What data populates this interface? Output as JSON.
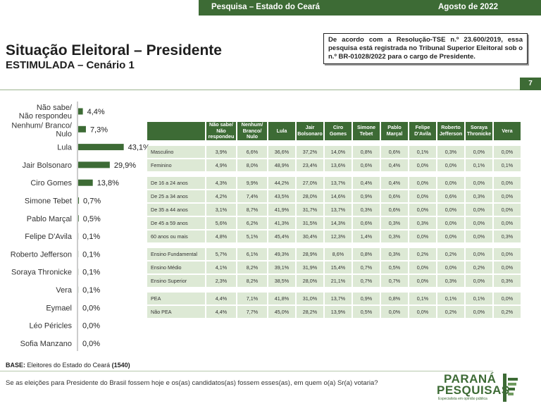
{
  "header": {
    "survey": "Pesquisa – Estado do Ceará",
    "date": "Agosto de 2022"
  },
  "title": "Situação Eleitoral – Presidente",
  "subtitle": "ESTIMULADA – Cenário 1",
  "notice": "De acordo com a Resolução-TSE n.º 23.600/2019, essa pesquisa está registrada no Tribunal Superior Eleitoral sob o n.º BR-01028/2022 para o cargo de Presidente.",
  "page_number": "7",
  "base": {
    "label": "BASE:",
    "text": " Eleitores do Estado do Ceará ",
    "count": "(1540)"
  },
  "question": "Se as eleições para Presidente do Brasil fossem hoje e os(as) candidatos(as) fossem esses(as), em quem o(a) Sr(a) votaria?",
  "logo": {
    "line1": "PARANÁ",
    "line2": "PESQUISAS",
    "tagline": "Especialista em opinião pública"
  },
  "colors": {
    "accent": "#3d6b35",
    "cell": "#dde9d5"
  },
  "chart_data": [
    {
      "type": "bar",
      "orientation": "horizontal",
      "categories": [
        [
          "Não sabe/",
          "Não respondeu"
        ],
        [
          "Nenhum/ Branco/",
          "Nulo"
        ],
        [
          "Lula"
        ],
        [
          "Jair Bolsonaro"
        ],
        [
          "Ciro Gomes"
        ],
        [
          "Simone Tebet"
        ],
        [
          "Pablo Marçal"
        ],
        [
          "Felipe D'Avila"
        ],
        [
          "Roberto Jefferson"
        ],
        [
          "Soraya Thronicke"
        ],
        [
          "Vera"
        ],
        [
          "Eymael"
        ],
        [
          "Léo Péricles"
        ],
        [
          "Sofia Manzano"
        ]
      ],
      "values": [
        4.4,
        7.3,
        43.1,
        29.9,
        13.8,
        0.7,
        0.5,
        0.1,
        0.1,
        0.1,
        0.1,
        0.0,
        0.0,
        0.0
      ],
      "value_labels": [
        "4,4%",
        "7,3%",
        "43,1%",
        "29,9%",
        "13,8%",
        "0,7%",
        "0,5%",
        "0,1%",
        "0,1%",
        "0,1%",
        "0,1%",
        "0,0%",
        "0,0%",
        "0,0%"
      ],
      "bar_color": "#3d6b35"
    },
    {
      "type": "table",
      "columns": [
        "",
        [
          "Não sabe/",
          "Não",
          "respondeu"
        ],
        [
          "Nenhum/",
          "Branco/",
          "Nulo"
        ],
        [
          "Lula"
        ],
        [
          "Jair",
          "Bolsonaro"
        ],
        [
          "Ciro",
          "Gomes"
        ],
        [
          "Simone",
          "Tebet"
        ],
        [
          "Pablo",
          "Marçal"
        ],
        [
          "Felipe",
          "D'Avila"
        ],
        [
          "Roberto",
          "Jefferson"
        ],
        [
          "Soraya",
          "Thronicke"
        ],
        [
          "Vera"
        ]
      ],
      "groups": [
        [
          [
            "Masculino",
            "3,9%",
            "6,6%",
            "36,6%",
            "37,2%",
            "14,0%",
            "0,8%",
            "0,6%",
            "0,1%",
            "0,3%",
            "0,0%",
            "0,0%"
          ],
          [
            "Feminino",
            "4,9%",
            "8,0%",
            "48,9%",
            "23,4%",
            "13,6%",
            "0,6%",
            "0,4%",
            "0,0%",
            "0,0%",
            "0,1%",
            "0,1%"
          ]
        ],
        [
          [
            "De 16 a 24 anos",
            "4,3%",
            "9,9%",
            "44,2%",
            "27,0%",
            "13,7%",
            "0,4%",
            "0,4%",
            "0,0%",
            "0,0%",
            "0,0%",
            "0,0%"
          ],
          [
            "De 25 a 34 anos",
            "4,2%",
            "7,4%",
            "43,5%",
            "28,0%",
            "14,6%",
            "0,9%",
            "0,6%",
            "0,0%",
            "0,6%",
            "0,3%",
            "0,0%"
          ],
          [
            "De 35 a 44 anos",
            "3,1%",
            "8,7%",
            "41,9%",
            "31,7%",
            "13,7%",
            "0,3%",
            "0,6%",
            "0,0%",
            "0,0%",
            "0,0%",
            "0,0%"
          ],
          [
            "De 45 a 59 anos",
            "5,6%",
            "6,2%",
            "41,3%",
            "31,5%",
            "14,3%",
            "0,6%",
            "0,3%",
            "0,3%",
            "0,0%",
            "0,0%",
            "0,0%"
          ],
          [
            "60 anos ou mais",
            "4,8%",
            "5,1%",
            "45,4%",
            "30,4%",
            "12,3%",
            "1,4%",
            "0,3%",
            "0,0%",
            "0,0%",
            "0,0%",
            "0,3%"
          ]
        ],
        [
          [
            "Ensino Fundamental",
            "5,7%",
            "6,1%",
            "49,3%",
            "28,9%",
            "8,6%",
            "0,8%",
            "0,3%",
            "0,2%",
            "0,2%",
            "0,0%",
            "0,0%"
          ],
          [
            "Ensino Médio",
            "4,1%",
            "8,2%",
            "39,1%",
            "31,9%",
            "15,4%",
            "0,7%",
            "0,5%",
            "0,0%",
            "0,0%",
            "0,2%",
            "0,0%"
          ],
          [
            "Ensino Superior",
            "2,3%",
            "8,2%",
            "38,5%",
            "28,0%",
            "21,1%",
            "0,7%",
            "0,7%",
            "0,0%",
            "0,3%",
            "0,0%",
            "0,3%"
          ]
        ],
        [
          [
            "PEA",
            "4,4%",
            "7,1%",
            "41,8%",
            "31,0%",
            "13,7%",
            "0,9%",
            "0,8%",
            "0,1%",
            "0,1%",
            "0,1%",
            "0,0%"
          ],
          [
            "Não PEA",
            "4,4%",
            "7,7%",
            "45,0%",
            "28,2%",
            "13,9%",
            "0,5%",
            "0,0%",
            "0,0%",
            "0,2%",
            "0,0%",
            "0,2%"
          ]
        ]
      ]
    }
  ]
}
